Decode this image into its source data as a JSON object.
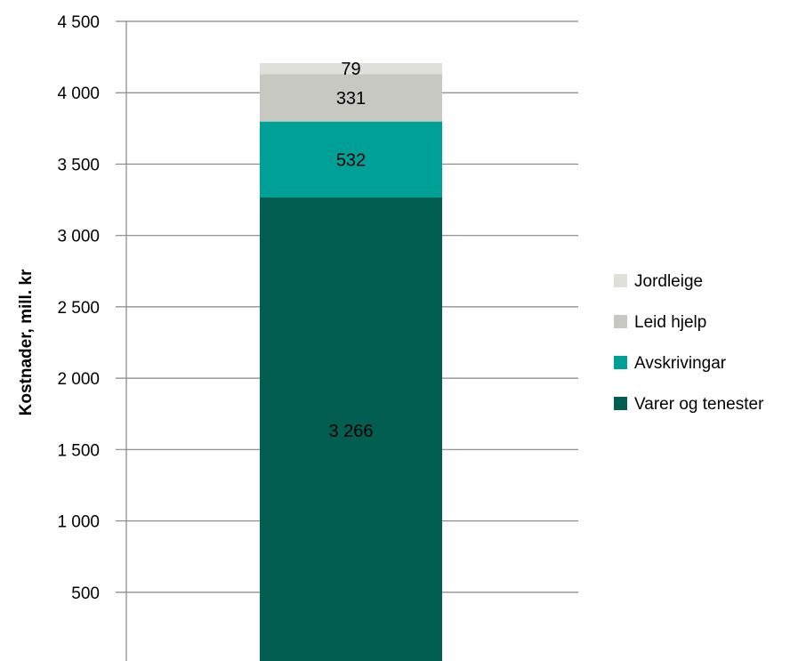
{
  "chart_data": {
    "type": "bar",
    "stacked": true,
    "title": "",
    "xlabel": "",
    "ylabel": "Kostnader, mill. kr",
    "ylim": [
      0,
      4500
    ],
    "yticks": [
      500,
      1000,
      1500,
      2000,
      2500,
      3000,
      3500,
      4000,
      4500
    ],
    "ytick_labels": [
      "500",
      "1 000",
      "1 500",
      "2 000",
      "2 500",
      "3 000",
      "3 500",
      "4 000",
      "4 500"
    ],
    "grid": true,
    "legend_position": "right",
    "series": [
      {
        "name": "Varer og tenester",
        "value": 3266,
        "label": "3 266",
        "color": "#025e50"
      },
      {
        "name": "Avskrivingar",
        "value": 532,
        "label": "532",
        "color": "#00a096"
      },
      {
        "name": "Leid hjelp",
        "value": 331,
        "label": "331",
        "color": "#c7c8c2"
      },
      {
        "name": "Jordleige",
        "value": 79,
        "label": "79",
        "color": "#dfe0da"
      }
    ]
  }
}
